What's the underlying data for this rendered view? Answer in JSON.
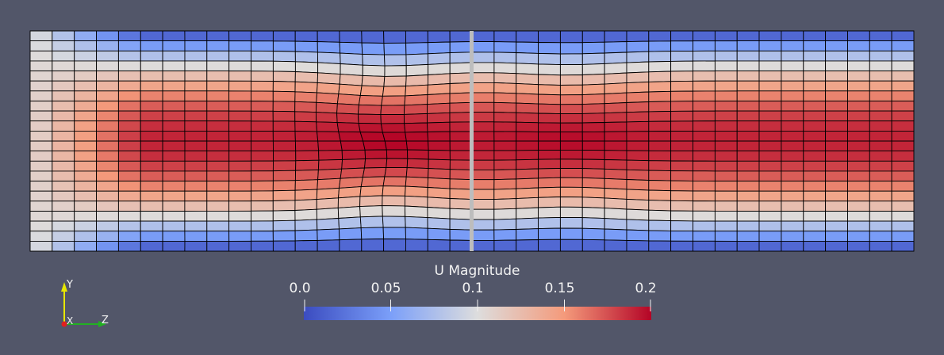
{
  "colorbar": {
    "title": "U Magnitude",
    "ticks": [
      "0.0",
      "0.05",
      "0.1",
      "0.15",
      "0.2"
    ],
    "range": [
      0,
      0.2
    ],
    "colormap": "Cool to Warm",
    "colors": [
      "#3b4cc0",
      "#dddddd",
      "#b40426"
    ]
  },
  "axes": {
    "y_label": "Y",
    "x_label": "X",
    "z_label": "Z"
  },
  "view": {
    "background": "#525669",
    "mesh_edge_color": "#000000",
    "mesh_columns": 40,
    "mesh_rows": 22
  }
}
